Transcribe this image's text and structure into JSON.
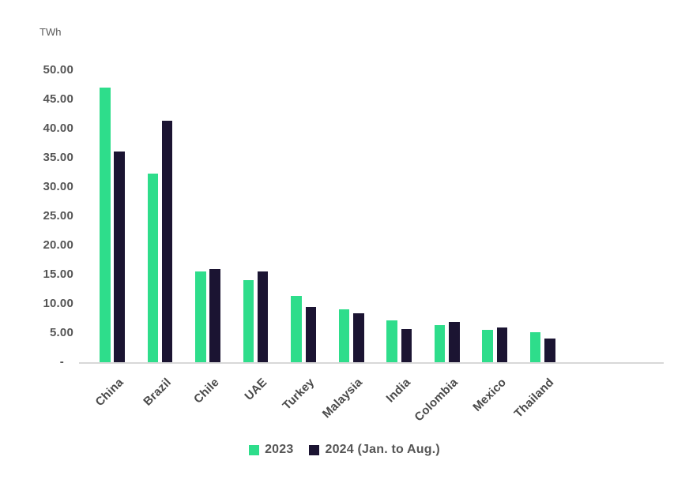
{
  "chart": {
    "unit_label": "TWh"
  },
  "chart_data": {
    "type": "bar",
    "title": "",
    "unit": "TWh",
    "xlabel": "",
    "ylabel": "TWh",
    "ylim": [
      0,
      50
    ],
    "ytick_interval": 5,
    "ytick_labels": [
      "50.00",
      "45.00",
      "40.00",
      "35.00",
      "30.00",
      "25.00",
      "20.00",
      "15.00",
      "10.00",
      "5.00",
      "-"
    ],
    "grid": false,
    "legend_position": "bottom",
    "categories": [
      "China",
      "Brazil",
      "Chile",
      "UAE",
      "Turkey",
      "Malaysia",
      "India",
      "Colombia",
      "Mexico",
      "Thailand"
    ],
    "series": [
      {
        "name": "2023",
        "color": "#2edd8b",
        "values": [
          47.0,
          32.3,
          15.5,
          14.0,
          11.4,
          9.1,
          7.2,
          6.3,
          5.5,
          5.2
        ]
      },
      {
        "name": "2024 (Jan. to Aug.)",
        "color": "#1b1432",
        "values": [
          36.1,
          41.3,
          15.9,
          15.6,
          9.5,
          8.4,
          5.7,
          6.9,
          6.0,
          4.0
        ]
      }
    ],
    "colors": {
      "axis_line": "#d8d8d8",
      "tick_text": "#555555",
      "category_text": "#4a4a4a",
      "series_2023": "#2edd8b",
      "series_2024": "#1b1432"
    }
  }
}
